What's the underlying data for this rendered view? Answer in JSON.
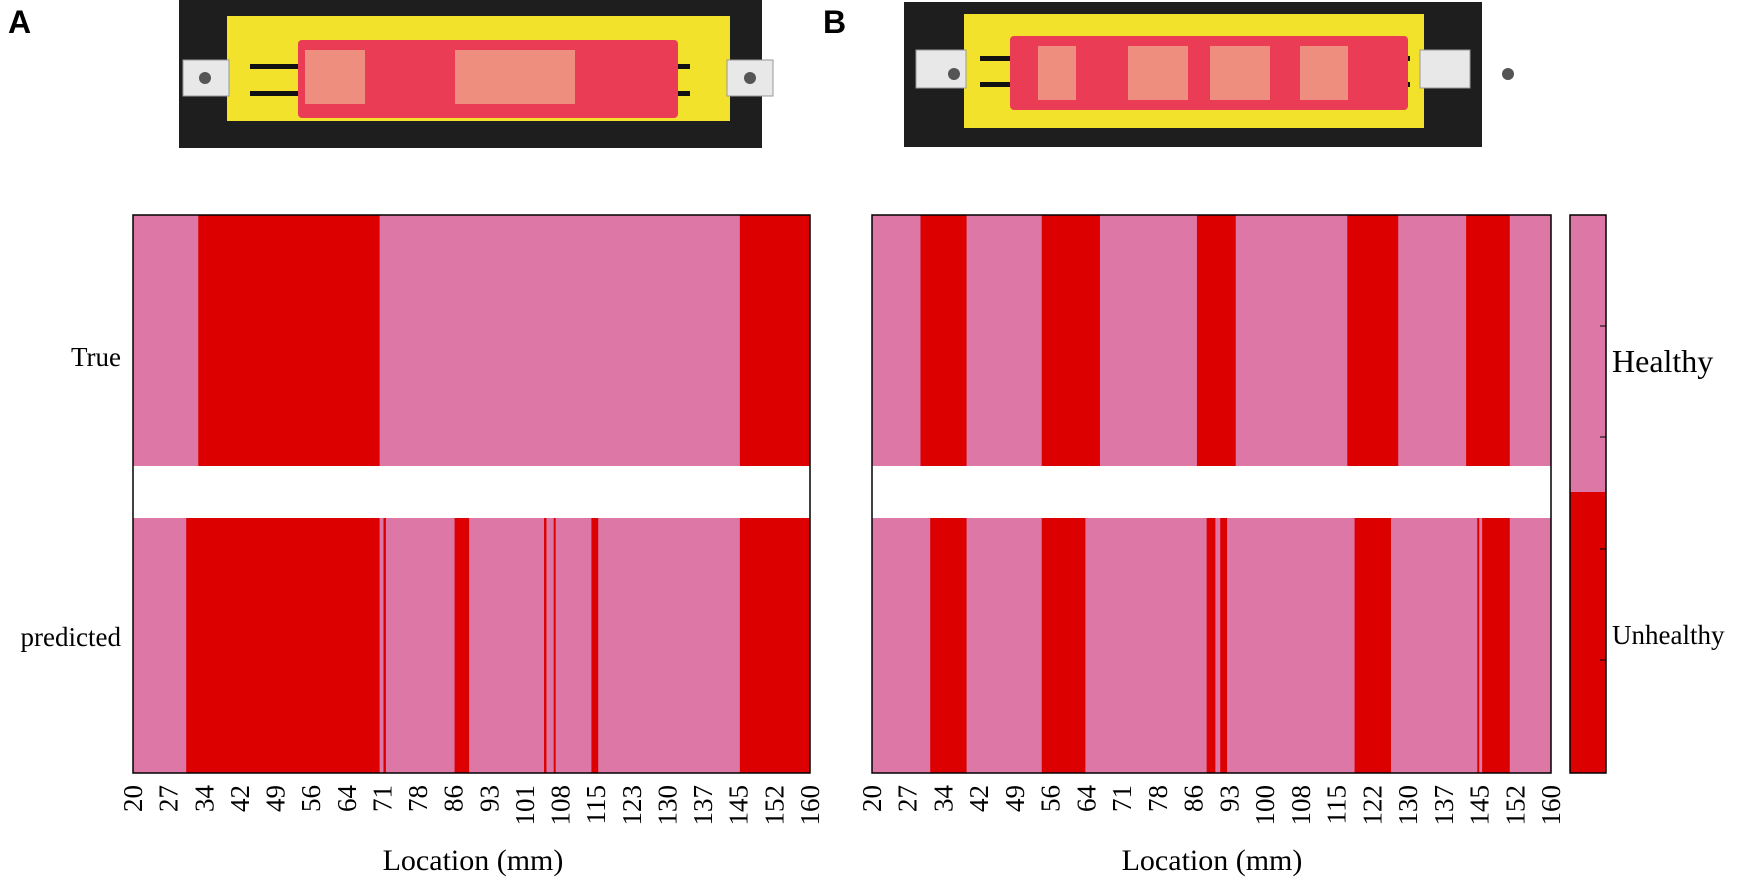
{
  "panels": [
    {
      "letter": "A",
      "row_labels": [
        "True",
        "predicted"
      ],
      "xlabel": "Location (mm)",
      "x_ticks": [
        "20",
        "27",
        "34",
        "42",
        "49",
        "56",
        "64",
        "71",
        "78",
        "86",
        "93",
        "101",
        "108",
        "115",
        "123",
        "130",
        "137",
        "145",
        "152",
        "160"
      ],
      "x_range": [
        20,
        160
      ]
    },
    {
      "letter": "B",
      "row_labels": [
        "",
        ""
      ],
      "xlabel": "Location (mm)",
      "x_ticks": [
        "20",
        "27",
        "34",
        "42",
        "49",
        "56",
        "64",
        "71",
        "78",
        "86",
        "93",
        "100",
        "108",
        "115",
        "122",
        "130",
        "137",
        "145",
        "152",
        "160"
      ],
      "x_range": [
        20,
        160
      ]
    }
  ],
  "colorbar": {
    "labels": [
      "Healthy",
      "Unhealthy"
    ]
  },
  "colors": {
    "healthy": "#dc77a6",
    "unhealthy": "#dc0000",
    "photo_background": "#1e1e1e",
    "board_yellow": "#f3e22c",
    "sample_red": "#ea3d55"
  },
  "chart_data": [
    {
      "type": "heatmap",
      "title": "A",
      "xlabel": "Location (mm)",
      "ylabel": "",
      "xlim": [
        20,
        160
      ],
      "rows": [
        {
          "name": "True",
          "unhealthy_intervals": [
            [
              33.5,
              71
            ],
            [
              145.5,
              160
            ]
          ]
        },
        {
          "name": "predicted",
          "unhealthy_intervals": [
            [
              31,
              71
            ],
            [
              71.8,
              72.3
            ],
            [
              86.5,
              89.5
            ],
            [
              105,
              105.5
            ],
            [
              107,
              107.4
            ],
            [
              114.8,
              116.2
            ],
            [
              145.5,
              160
            ]
          ]
        }
      ],
      "legend": [
        "Healthy",
        "Unhealthy"
      ]
    },
    {
      "type": "heatmap",
      "title": "B",
      "xlabel": "Location (mm)",
      "ylabel": "",
      "xlim": [
        20,
        160
      ],
      "rows": [
        {
          "name": "True",
          "unhealthy_intervals": [
            [
              30,
              39.5
            ],
            [
              55,
              67
            ],
            [
              87,
              95
            ],
            [
              118,
              128.5
            ],
            [
              142.5,
              151.5
            ]
          ]
        },
        {
          "name": "predicted",
          "unhealthy_intervals": [
            [
              32,
              39.5
            ],
            [
              55,
              64
            ],
            [
              89,
              90.8
            ],
            [
              91.8,
              93.2
            ],
            [
              119.5,
              127
            ],
            [
              144.8,
              145.2
            ],
            [
              145.8,
              151.5
            ]
          ]
        }
      ],
      "legend": [
        "Healthy",
        "Unhealthy"
      ]
    }
  ]
}
